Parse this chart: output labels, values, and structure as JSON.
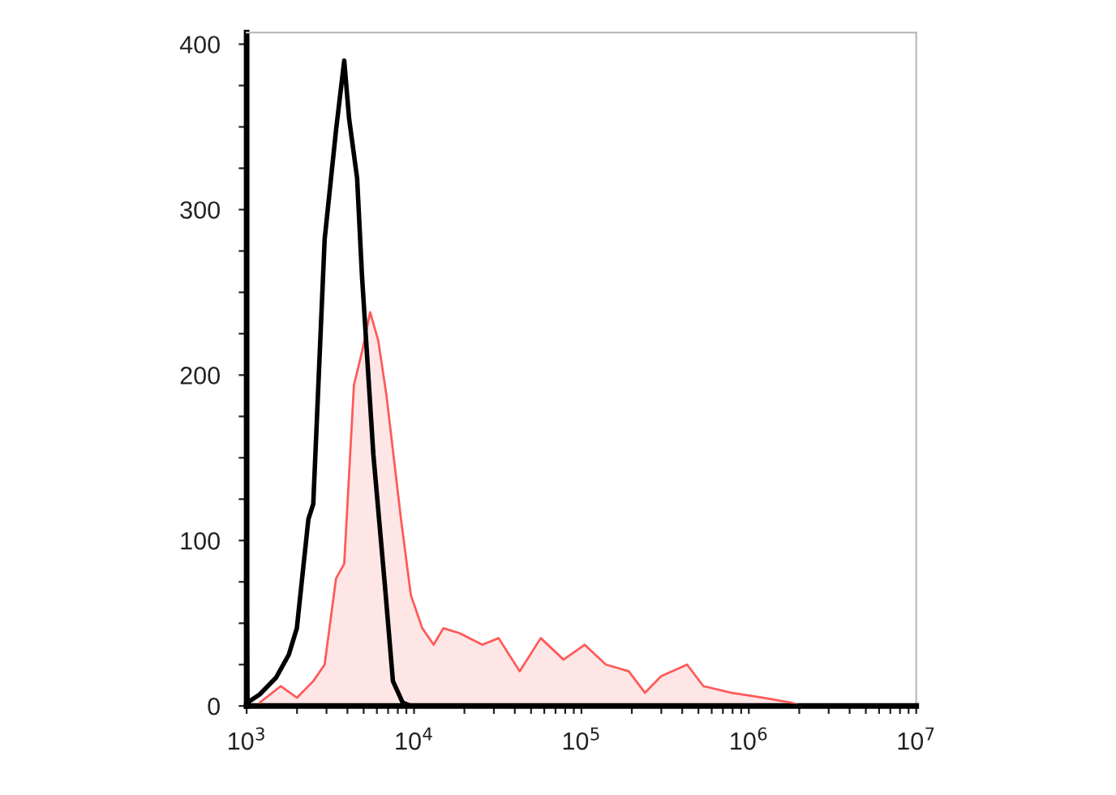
{
  "chart_data": {
    "type": "area",
    "log": "x",
    "grid": false,
    "legend": false,
    "xlim": [
      1000,
      10000000
    ],
    "ylim": [
      0,
      407
    ],
    "xticks": [
      {
        "value": 1000,
        "label": "10$^{3}$"
      },
      {
        "value": 2000,
        "label": null
      },
      {
        "value": 3000,
        "label": null
      },
      {
        "value": 4000,
        "label": null
      },
      {
        "value": 5000,
        "label": null
      },
      {
        "value": 6000,
        "label": null
      },
      {
        "value": 7000,
        "label": null
      },
      {
        "value": 8000,
        "label": null
      },
      {
        "value": 9000,
        "label": null
      },
      {
        "value": 10000,
        "label": "10$^{4}$"
      },
      {
        "value": 20000,
        "label": null
      },
      {
        "value": 30000,
        "label": null
      },
      {
        "value": 40000,
        "label": null
      },
      {
        "value": 50000,
        "label": null
      },
      {
        "value": 60000,
        "label": null
      },
      {
        "value": 70000,
        "label": null
      },
      {
        "value": 80000,
        "label": null
      },
      {
        "value": 90000,
        "label": null
      },
      {
        "value": 100000,
        "label": "10$^{5}$"
      },
      {
        "value": 200000,
        "label": null
      },
      {
        "value": 300000,
        "label": null
      },
      {
        "value": 400000,
        "label": null
      },
      {
        "value": 500000,
        "label": null
      },
      {
        "value": 600000,
        "label": null
      },
      {
        "value": 700000,
        "label": null
      },
      {
        "value": 800000,
        "label": null
      },
      {
        "value": 900000,
        "label": null
      },
      {
        "value": 1000000,
        "label": "10$^{6}$"
      },
      {
        "value": 2000000,
        "label": null
      },
      {
        "value": 3000000,
        "label": null
      },
      {
        "value": 4000000,
        "label": null
      },
      {
        "value": 5000000,
        "label": null
      },
      {
        "value": 6000000,
        "label": null
      },
      {
        "value": 7000000,
        "label": null
      },
      {
        "value": 8000000,
        "label": null
      },
      {
        "value": 9000000,
        "label": null
      },
      {
        "value": 10000000,
        "label": "10$^{7}$"
      }
    ],
    "yticks": [
      0,
      {
        "value": 25,
        "label": null
      },
      {
        "value": 50,
        "label": null
      },
      {
        "value": 75,
        "label": null
      },
      100,
      {
        "value": 125,
        "label": null
      },
      {
        "value": 150,
        "label": null
      },
      {
        "value": 175,
        "label": null
      },
      200,
      {
        "value": 225,
        "label": null
      },
      {
        "value": 250,
        "label": null
      },
      {
        "value": 275,
        "label": null
      },
      300,
      {
        "value": 325,
        "label": null
      },
      {
        "value": 350,
        "label": null
      },
      {
        "value": 375,
        "label": null
      },
      400
    ],
    "series": [
      {
        "color": "#ff5a5a",
        "x": [
          1197,
          1600,
          2000,
          2500,
          2924,
          3420,
          3828,
          4375,
          4887,
          5469,
          6109,
          6839,
          8356,
          9572,
          11200,
          13100,
          14970,
          18700,
          25590,
          32000,
          42760,
          57150,
          78200,
          104500,
          140000,
          191500,
          239500,
          299500,
          427600,
          534600,
          781600,
          1222000,
          1786000,
          2046000
        ],
        "values": [
          2,
          12,
          5,
          15,
          25,
          77,
          86,
          194,
          214,
          238,
          221,
          188,
          113,
          67,
          47,
          37,
          47,
          44,
          37,
          41,
          21,
          41,
          28,
          37,
          25,
          21,
          8,
          18,
          25,
          12,
          8,
          5,
          2,
          0
        ]
      },
      {
        "type": "line",
        "color": "#000000",
        "x": [
          1000,
          1010,
          1197,
          1496,
          1786,
          1995,
          2339,
          2500,
          2924,
          3420,
          3828,
          4093,
          4571,
          4887,
          5715,
          6683,
          7482,
          8551,
          9572,
          10000000
        ],
        "values": [
          70,
          2,
          7,
          17,
          31,
          47,
          113,
          122,
          282,
          348,
          390,
          355,
          319,
          260,
          152,
          74,
          15,
          2,
          0,
          0
        ]
      }
    ]
  }
}
